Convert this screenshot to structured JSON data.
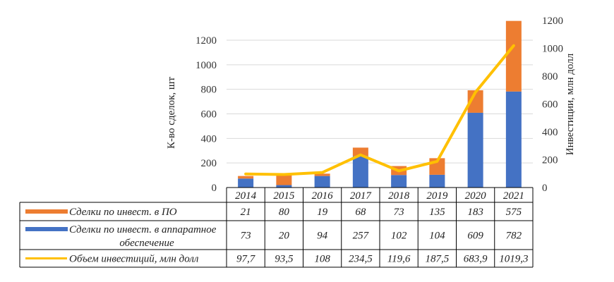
{
  "chart_data": {
    "type": "bar",
    "subtype": "stacked-bar-with-line-and-data-table",
    "categories": [
      "2014",
      "2015",
      "2016",
      "2017",
      "2018",
      "2019",
      "2020",
      "2021"
    ],
    "series": [
      {
        "name": "Сделки по инвест. в аппаратное обеспечение",
        "type": "bar",
        "stack": "deals",
        "axis": "left",
        "color": "#4472C4",
        "values": [
          73,
          20,
          94,
          257,
          102,
          104,
          609,
          782
        ],
        "labels": [
          "73",
          "20",
          "94",
          "257",
          "102",
          "104",
          "609",
          "782"
        ]
      },
      {
        "name": "Сделки по инвест. в ПО",
        "type": "bar",
        "stack": "deals",
        "axis": "left",
        "color": "#ED7D31",
        "values": [
          21,
          80,
          19,
          68,
          73,
          135,
          183,
          575
        ],
        "labels": [
          "21",
          "80",
          "19",
          "68",
          "73",
          "135",
          "183",
          "575"
        ]
      },
      {
        "name": "Объем инвестиций, млн долл",
        "type": "line",
        "axis": "right",
        "color": "#FFC000",
        "values": [
          97.7,
          93.5,
          108,
          234.5,
          119.6,
          187.5,
          683.9,
          1019.3
        ],
        "labels": [
          "97,7",
          "93,5",
          "108",
          "234,5",
          "119,6",
          "187,5",
          "683,9",
          "1019,3"
        ]
      }
    ],
    "table_rows_order": [
      1,
      0,
      2
    ],
    "table_row_labels": [
      [
        "Сделки по инвест. в ПО"
      ],
      [
        "Сделки по инвест. в аппаратное",
        "обеспечение"
      ],
      [
        "Объем инвестиций, млн долл"
      ]
    ],
    "y_left": {
      "label": "К-во сделок, шт",
      "range": [
        0,
        1400
      ],
      "ticks": [
        "0",
        "200",
        "400",
        "600",
        "800",
        "1000",
        "1200"
      ],
      "tick_values": [
        0,
        200,
        400,
        600,
        800,
        1000,
        1200
      ]
    },
    "y_right": {
      "label": "Инвестиции, млн долл",
      "range": [
        0,
        1200
      ],
      "ticks": [
        "0",
        "200",
        "400",
        "600",
        "800",
        "1000",
        "1200"
      ],
      "tick_values": [
        0,
        200,
        400,
        600,
        800,
        1000,
        1200
      ]
    },
    "grid": true,
    "legend": "data-table-bottom",
    "title": ""
  }
}
